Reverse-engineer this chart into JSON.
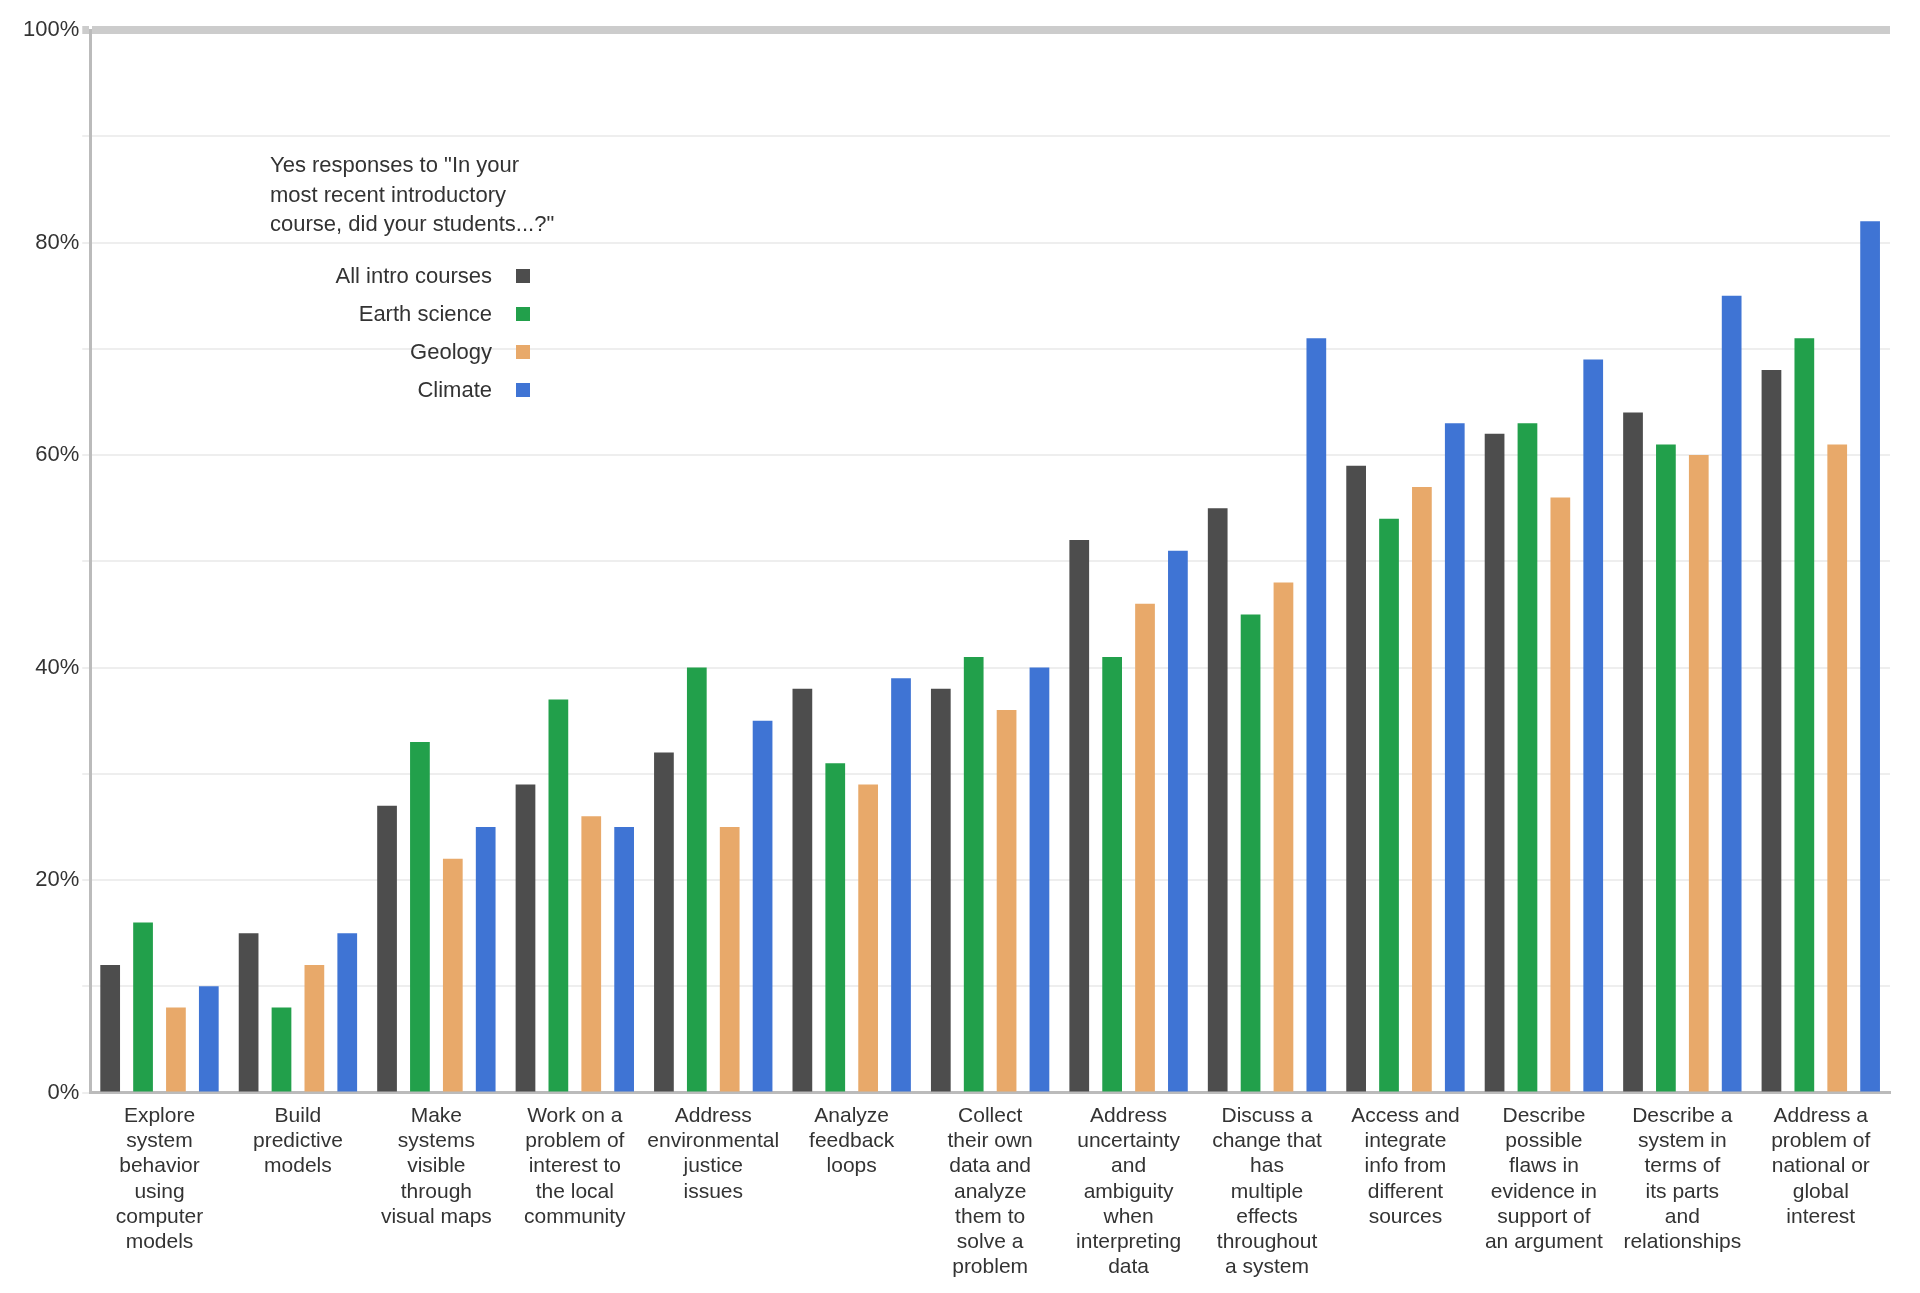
{
  "chart_data": {
    "type": "bar",
    "legend_title": "Yes responses to \"In your most recent introductory course, did your students...?\"",
    "categories": [
      "Explore system behavior using computer models",
      "Build predictive models",
      "Make systems visible through visual maps",
      "Work on a problem of interest to the local community",
      "Address environmental justice issues",
      "Analyze feedback loops",
      "Collect their own data and analyze them to solve a problem",
      "Address uncertainty and ambiguity when interpreting data",
      "Discuss a change that has multiple effects throughout a system",
      "Access and integrate info from different sources",
      "Describe possible flaws in evidence in support of an argument",
      "Describe a system in terms of its parts and relationships",
      "Address a problem of national or global interest"
    ],
    "series": [
      {
        "name": "All intro courses",
        "color": "#4d4d4d",
        "values": [
          12,
          15,
          27,
          29,
          32,
          38,
          38,
          52,
          55,
          59,
          62,
          64,
          68
        ]
      },
      {
        "name": "Earth science",
        "color": "#22a04b",
        "values": [
          16,
          8,
          33,
          37,
          40,
          31,
          41,
          41,
          45,
          54,
          63,
          61,
          71
        ]
      },
      {
        "name": "Geology",
        "color": "#e8a96a",
        "values": [
          8,
          12,
          22,
          26,
          25,
          29,
          36,
          46,
          48,
          57,
          56,
          60,
          61
        ]
      },
      {
        "name": "Climate",
        "color": "#3f74d4",
        "values": [
          10,
          15,
          25,
          25,
          35,
          39,
          40,
          51,
          71,
          63,
          69,
          75,
          82
        ]
      }
    ],
    "ylim": [
      0,
      100
    ],
    "yticks": [
      {
        "value": 0,
        "label": "0%"
      },
      {
        "value": 10,
        "label": null
      },
      {
        "value": 20,
        "label": "20%"
      },
      {
        "value": 30,
        "label": null
      },
      {
        "value": 40,
        "label": "40%"
      },
      {
        "value": 50,
        "label": null
      },
      {
        "value": 60,
        "label": "60%"
      },
      {
        "value": 70,
        "label": null
      },
      {
        "value": 80,
        "label": "80%"
      },
      {
        "value": 90,
        "label": null
      },
      {
        "value": 100,
        "label": "100%"
      }
    ],
    "grid": "y",
    "legend": "top left"
  }
}
